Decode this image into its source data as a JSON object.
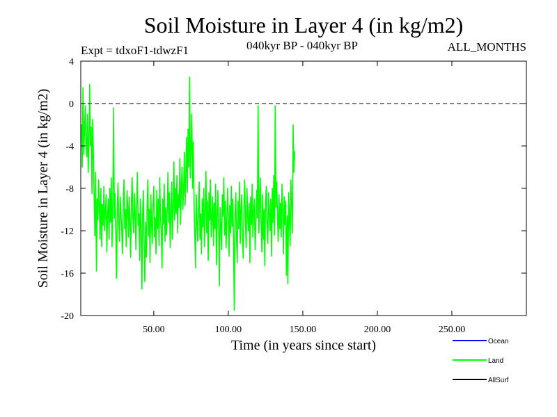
{
  "chart_data": {
    "type": "line",
    "title": "Soil Moisture in Layer 4 (in kg/m2)",
    "subtitle_left": "Expt = tdxoF1-tdwzF1",
    "subtitle_center": "040kyr BP - 040kyr BP",
    "subtitle_right": "ALL_MONTHS",
    "xlabel": "Time (in years since start)",
    "ylabel": "Soil Moisture in Layer 4 (in kg/m2)",
    "xlim": [
      1,
      300
    ],
    "ylim": [
      -20,
      4
    ],
    "xticks": [
      50,
      100,
      150,
      200,
      250
    ],
    "xtick_labels": [
      "50.00",
      "100.00",
      "150.00",
      "200.00",
      "250.00"
    ],
    "yticks": [
      4,
      0,
      -4,
      -8,
      -12,
      -16,
      -20
    ],
    "ytick_labels": [
      "4",
      "0",
      "-4",
      "-8",
      "-12",
      "-16",
      "-20"
    ],
    "reference_line_y": 0,
    "legend_position": "bottom-right, below plot",
    "legend": [
      {
        "name": "Ocean",
        "color": "#0000ff"
      },
      {
        "name": "Land",
        "color": "#00ff00"
      },
      {
        "name": "AllSurf",
        "color": "#000000"
      }
    ],
    "series": [
      {
        "name": "Land",
        "color": "#00ff00",
        "x_start": 1,
        "x_step": 0.5,
        "values": [
          -3.6,
          -2.0,
          -6.0,
          1.5,
          -4.8,
          -2.5,
          -0.2,
          -3.5,
          -5.0,
          -1.0,
          -6.5,
          -3.0,
          1.8,
          -4.0,
          -2.2,
          -8.5,
          -1.5,
          -5.0,
          -9.0,
          -12.5,
          -6.5,
          -15.8,
          -9.0,
          -11.0,
          -7.2,
          -10.0,
          -12.8,
          -8.0,
          -13.5,
          -9.5,
          -11.5,
          -7.8,
          -12.0,
          -10.2,
          -8.6,
          -14.0,
          -10.5,
          -9.0,
          -12.8,
          -8.0,
          -11.2,
          -7.0,
          -13.5,
          -9.6,
          -0.4,
          -10.8,
          -8.5,
          -12.2,
          -16.5,
          -9.8,
          -7.5,
          -11.5,
          -13.0,
          -8.8,
          -10.5,
          -12.0,
          -14.2,
          -9.2,
          -7.2,
          -11.8,
          -10.0,
          -13.5,
          -8.2,
          -9.6,
          -12.6,
          -8.8,
          -11.0,
          -14.5,
          -9.0,
          -7.0,
          -10.8,
          -12.2,
          -8.5,
          -10.2,
          -13.8,
          -9.4,
          -6.5,
          -11.5,
          -10.4,
          -14.8,
          -9.0,
          -12.0,
          -17.5,
          -10.5,
          -8.2,
          -13.5,
          -16.8,
          -11.2,
          -14.5,
          -9.8,
          -7.2,
          -12.5,
          -10.0,
          -15.0,
          -8.6,
          -11.4,
          -13.2,
          -9.5,
          -7.8,
          -12.6,
          -10.8,
          -14.2,
          -8.2,
          -11.8,
          -9.0,
          -13.4,
          -7.0,
          -10.6,
          -12.2,
          -15.5,
          -9.0,
          -11.4,
          -7.6,
          -13.0,
          -9.8,
          -12.4,
          -10.2,
          -6.5,
          -11.2,
          -8.4,
          -13.6,
          -10.0,
          -7.4,
          -12.8,
          -9.6,
          -5.5,
          -11.0,
          -8.0,
          -10.4,
          -6.8,
          -12.2,
          -8.6,
          -9.8,
          -5.2,
          -11.4,
          -7.8,
          -6.0,
          -10.0,
          -8.2,
          -4.6,
          -9.6,
          -6.8,
          -3.2,
          -8.4,
          -2.4,
          -6.0,
          2.5,
          -7.0,
          -4.2,
          -1.0,
          -8.0,
          -3.6,
          -9.5,
          -12.0,
          -15.5,
          -8.6,
          -11.2,
          -13.0,
          -9.6,
          -7.4,
          -12.8,
          -10.4,
          -14.2,
          -9.0,
          -11.6,
          -8.0,
          -13.5,
          -10.0,
          -6.4,
          -12.2,
          -9.2,
          -14.8,
          -8.4,
          -11.0,
          -7.2,
          -12.6,
          -10.8,
          -8.8,
          -13.4,
          -9.4,
          -11.8,
          -7.6,
          -15.2,
          -10.2,
          -8.2,
          -12.0,
          -17.2,
          -9.8,
          -11.4,
          -13.8,
          -8.6,
          -10.6,
          -7.0,
          -12.4,
          -9.2,
          -13.6,
          -11.0,
          -8.0,
          -10.8,
          -14.4,
          -9.6,
          -12.2,
          -7.8,
          -11.6,
          -9.0,
          -13.0,
          -19.5,
          -10.4,
          -8.4,
          -12.8,
          -15.0,
          -9.2,
          -11.8,
          -7.4,
          -13.2,
          -10.0,
          -8.6,
          -12.4,
          -14.6,
          -9.8,
          -7.2,
          -11.0,
          -13.6,
          -8.0,
          -10.6,
          -12.0,
          -9.4,
          -15.0,
          -8.8,
          -11.4,
          -7.6,
          -12.6,
          -10.2,
          -9.0,
          -13.8,
          -11.6,
          -8.2,
          -10.8,
          -0.2,
          -12.2,
          -9.6,
          -7.0,
          -11.4,
          -14.0,
          -8.6,
          -12.8,
          -10.0,
          -15.3,
          -9.2,
          -7.8,
          -11.6,
          -13.2,
          -8.4,
          -10.4,
          -12.0,
          -9.0,
          -14.4,
          -8.0,
          -11.2,
          -6.8,
          -12.4,
          -0.2,
          -9.8,
          -7.4,
          -10.8,
          -13.0,
          -8.6,
          -11.8,
          -9.4,
          -12.6,
          -7.6,
          -10.0,
          -14.2,
          -8.8,
          -11.4,
          -9.2,
          -16.2,
          -10.6,
          -17.0,
          -8.4,
          -11.0,
          -13.4,
          -7.2,
          -9.6,
          -12.2,
          -2.0,
          -6.5,
          -4.5
        ]
      }
    ]
  }
}
